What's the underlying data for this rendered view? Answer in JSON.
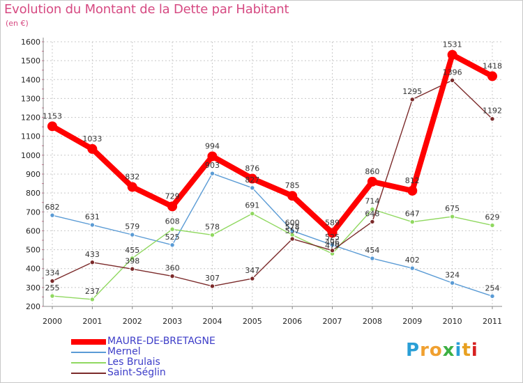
{
  "title": "Evolution du Montant de la Dette par Habitant",
  "unit": "(en €)",
  "logo": {
    "letters": [
      "P",
      "r",
      "o",
      "x",
      "i",
      "t",
      "i"
    ],
    "colors": [
      "#2a9fd6",
      "#f0a030",
      "#f0a030",
      "#3cb043",
      "#2a9fd6",
      "#e8a020",
      "#d62020"
    ]
  },
  "chart_data": {
    "type": "line",
    "categories": [
      "2000",
      "2001",
      "2002",
      "2003",
      "2004",
      "2005",
      "2006",
      "2007",
      "2008",
      "2009",
      "2010",
      "2011"
    ],
    "ylim": [
      200,
      1600
    ],
    "yticks": [
      200,
      300,
      400,
      500,
      600,
      700,
      800,
      900,
      1000,
      1100,
      1200,
      1300,
      1400,
      1500,
      1600
    ],
    "grid": true,
    "legend_position": "bottom-left",
    "series": [
      {
        "name": "MAURE-DE-BRETAGNE",
        "color": "#ff0000",
        "values": [
          1153,
          1033,
          832,
          729,
          994,
          876,
          785,
          589,
          860,
          812,
          1531,
          1418
        ],
        "labels": [
          "1153",
          "1033",
          "832",
          "729",
          "994",
          "876",
          "785",
          "589",
          "860",
          "812",
          "1531",
          "1418"
        ]
      },
      {
        "name": "Mernel",
        "color": "#5a9bd5",
        "values": [
          682,
          631,
          579,
          525,
          903,
          827,
          600,
          525,
          454,
          402,
          324,
          254
        ],
        "labels": [
          "682",
          "631",
          "579",
          "525",
          "903",
          "827",
          "600",
          "525",
          "454",
          "402",
          "324",
          "254"
        ]
      },
      {
        "name": "Les Brulais",
        "color": "#90d860",
        "values": [
          255,
          237,
          455,
          608,
          578,
          691,
          578,
          479,
          714,
          647,
          675,
          629
        ],
        "labels": [
          "255",
          "237",
          "455",
          "608",
          "578",
          "691",
          "578",
          "479",
          "714",
          "647",
          "675",
          "629"
        ]
      },
      {
        "name": "Saint-Séglin",
        "color": "#7b2a2a",
        "values": [
          334,
          433,
          398,
          360,
          307,
          347,
          557,
          496,
          648,
          1295,
          1396,
          1192
        ],
        "labels": [
          "334",
          "433",
          "398",
          "360",
          "307",
          "347",
          "557",
          "496",
          "648",
          "1295",
          "1396",
          "1192"
        ]
      }
    ]
  }
}
